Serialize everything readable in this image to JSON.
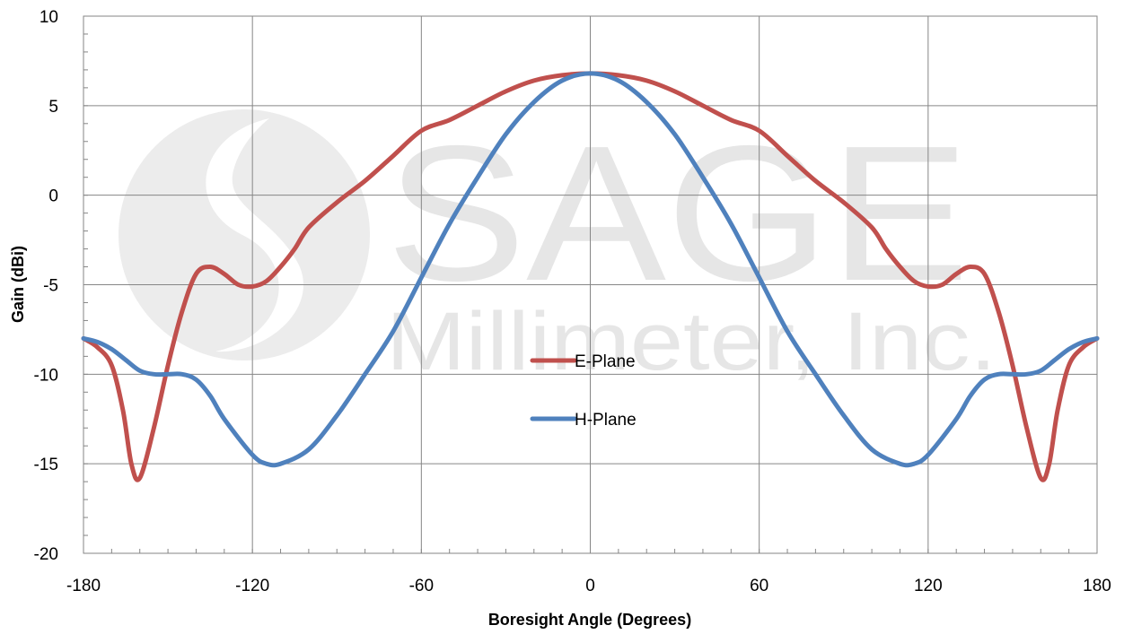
{
  "watermark": {
    "line1": "SAGE",
    "line2": "Millimeter, Inc."
  },
  "chart_data": {
    "type": "line",
    "title": "",
    "xlabel": "Boresight Angle (Degrees)",
    "ylabel": "Gain (dBi)",
    "xlim": [
      -180,
      180
    ],
    "ylim": [
      -20,
      10
    ],
    "xticks": [
      -180,
      -120,
      -60,
      0,
      60,
      120,
      180
    ],
    "yticks": [
      -20,
      -15,
      -10,
      -5,
      0,
      5,
      10
    ],
    "grid": true,
    "legend_placement": "center",
    "series": [
      {
        "name": "E-Plane",
        "color": "#C0504D",
        "x": [
          0,
          10,
          20,
          30,
          40,
          50,
          60,
          70,
          80,
          90,
          100,
          105,
          110,
          115,
          120,
          125,
          130,
          135,
          140,
          145,
          150,
          155,
          160,
          163,
          166,
          170,
          175,
          180
        ],
        "y": [
          6.8,
          6.7,
          6.4,
          5.8,
          5.0,
          4.2,
          3.6,
          2.2,
          0.8,
          -0.4,
          -1.8,
          -3.0,
          -4.0,
          -4.8,
          -5.1,
          -5.0,
          -4.4,
          -4.0,
          -4.4,
          -6.5,
          -9.5,
          -13.0,
          -15.8,
          -15.0,
          -12.0,
          -9.5,
          -8.5,
          -8.0
        ]
      },
      {
        "name": "H-Plane",
        "color": "#4F81BD",
        "x": [
          0,
          10,
          20,
          30,
          40,
          50,
          60,
          70,
          80,
          90,
          100,
          110,
          115,
          120,
          130,
          135,
          140,
          145,
          150,
          155,
          160,
          165,
          170,
          175,
          180
        ],
        "y": [
          6.8,
          6.4,
          5.2,
          3.4,
          1.0,
          -1.6,
          -4.6,
          -7.6,
          -10.0,
          -12.3,
          -14.2,
          -15.0,
          -15.0,
          -14.5,
          -12.5,
          -11.2,
          -10.3,
          -10.0,
          -10.0,
          -10.0,
          -9.8,
          -9.2,
          -8.6,
          -8.2,
          -8.0
        ]
      }
    ]
  }
}
